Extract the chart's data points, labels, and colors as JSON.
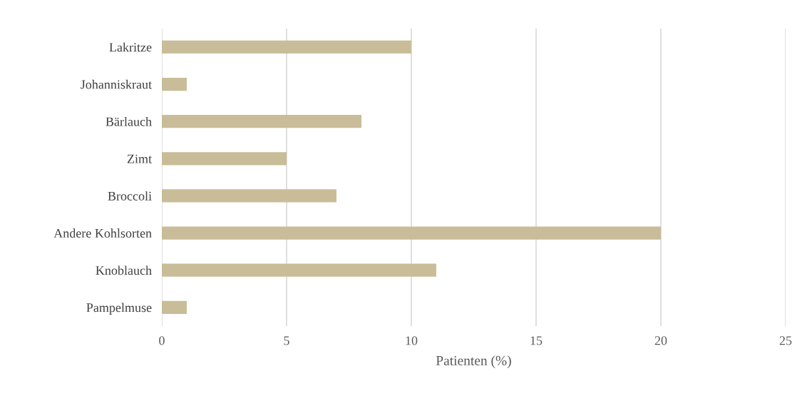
{
  "chart_data": {
    "type": "bar",
    "orientation": "horizontal",
    "xlabel": "Patienten (%)",
    "categories": [
      "Lakritze",
      "Johanniskraut",
      "Bärlauch",
      "Zimt",
      "Broccoli",
      "Andere Kohlsorten",
      "Knoblauch",
      "Pampelmuse"
    ],
    "values": [
      10,
      1,
      8,
      5,
      7,
      20,
      11,
      1
    ],
    "color": "#c8bd98",
    "xlim": [
      0,
      25
    ],
    "xticks": [
      0,
      5,
      10,
      15,
      20,
      25
    ],
    "grid": "x"
  }
}
